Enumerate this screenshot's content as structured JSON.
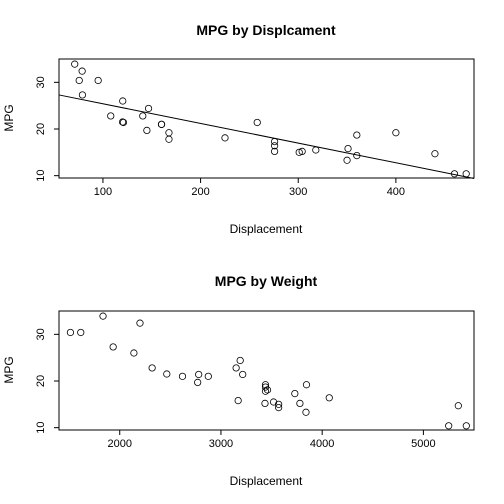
{
  "chart_data": [
    {
      "type": "scatter",
      "title": "MPG by Displcament",
      "xlabel": "Displacement",
      "ylabel": "MPG",
      "xlim": [
        55,
        480
      ],
      "ylim": [
        9.5,
        35
      ],
      "xticks": [
        100,
        200,
        300,
        400
      ],
      "yticks": [
        10,
        20,
        30
      ],
      "grid": false,
      "legend": "none",
      "regression_line": {
        "x": [
          55,
          480
        ],
        "y": [
          27.3,
          9.4
        ]
      },
      "points": [
        {
          "x": 71.1,
          "y": 33.9
        },
        {
          "x": 75.7,
          "y": 30.4
        },
        {
          "x": 78.7,
          "y": 32.4
        },
        {
          "x": 79.0,
          "y": 27.3
        },
        {
          "x": 95.1,
          "y": 30.4
        },
        {
          "x": 108.0,
          "y": 22.8
        },
        {
          "x": 120.1,
          "y": 21.5
        },
        {
          "x": 120.3,
          "y": 26.0
        },
        {
          "x": 121.0,
          "y": 21.4
        },
        {
          "x": 140.8,
          "y": 22.8
        },
        {
          "x": 145.0,
          "y": 19.7
        },
        {
          "x": 146.7,
          "y": 24.4
        },
        {
          "x": 160.0,
          "y": 21.0
        },
        {
          "x": 160.0,
          "y": 21.0
        },
        {
          "x": 167.6,
          "y": 19.2
        },
        {
          "x": 167.6,
          "y": 17.8
        },
        {
          "x": 225.0,
          "y": 18.1
        },
        {
          "x": 258.0,
          "y": 21.4
        },
        {
          "x": 275.8,
          "y": 16.4
        },
        {
          "x": 275.8,
          "y": 17.3
        },
        {
          "x": 275.8,
          "y": 15.2
        },
        {
          "x": 301.0,
          "y": 15.0
        },
        {
          "x": 304.0,
          "y": 15.2
        },
        {
          "x": 318.0,
          "y": 15.5
        },
        {
          "x": 350.0,
          "y": 13.3
        },
        {
          "x": 351.0,
          "y": 15.8
        },
        {
          "x": 360.0,
          "y": 18.7
        },
        {
          "x": 360.0,
          "y": 14.3
        },
        {
          "x": 400.0,
          "y": 19.2
        },
        {
          "x": 440.0,
          "y": 14.7
        },
        {
          "x": 460.0,
          "y": 10.4
        },
        {
          "x": 472.0,
          "y": 10.4
        }
      ]
    },
    {
      "type": "scatter",
      "title": "MPG by Weight",
      "xlabel": "Displacement",
      "ylabel": "MPG",
      "xlim": [
        1400,
        5500
      ],
      "ylim": [
        9.5,
        35
      ],
      "xticks": [
        2000,
        3000,
        4000,
        5000
      ],
      "yticks": [
        10,
        20,
        30
      ],
      "grid": false,
      "legend": "none",
      "points": [
        {
          "x": 1513,
          "y": 30.4
        },
        {
          "x": 1615,
          "y": 30.4
        },
        {
          "x": 1835,
          "y": 33.9
        },
        {
          "x": 1935,
          "y": 27.3
        },
        {
          "x": 2140,
          "y": 26.0
        },
        {
          "x": 2200,
          "y": 32.4
        },
        {
          "x": 2320,
          "y": 22.8
        },
        {
          "x": 2465,
          "y": 21.5
        },
        {
          "x": 2620,
          "y": 21.0
        },
        {
          "x": 2770,
          "y": 19.7
        },
        {
          "x": 2780,
          "y": 21.4
        },
        {
          "x": 2875,
          "y": 21.0
        },
        {
          "x": 3150,
          "y": 22.8
        },
        {
          "x": 3170,
          "y": 15.8
        },
        {
          "x": 3190,
          "y": 24.4
        },
        {
          "x": 3215,
          "y": 21.4
        },
        {
          "x": 3435,
          "y": 15.2
        },
        {
          "x": 3440,
          "y": 18.7
        },
        {
          "x": 3440,
          "y": 19.2
        },
        {
          "x": 3440,
          "y": 17.8
        },
        {
          "x": 3460,
          "y": 18.1
        },
        {
          "x": 3520,
          "y": 15.5
        },
        {
          "x": 3570,
          "y": 14.3
        },
        {
          "x": 3570,
          "y": 15.0
        },
        {
          "x": 3730,
          "y": 17.3
        },
        {
          "x": 3780,
          "y": 15.2
        },
        {
          "x": 3840,
          "y": 13.3
        },
        {
          "x": 3845,
          "y": 19.2
        },
        {
          "x": 4070,
          "y": 16.4
        },
        {
          "x": 5250,
          "y": 10.4
        },
        {
          "x": 5345,
          "y": 14.7
        },
        {
          "x": 5424,
          "y": 10.4
        }
      ]
    }
  ]
}
